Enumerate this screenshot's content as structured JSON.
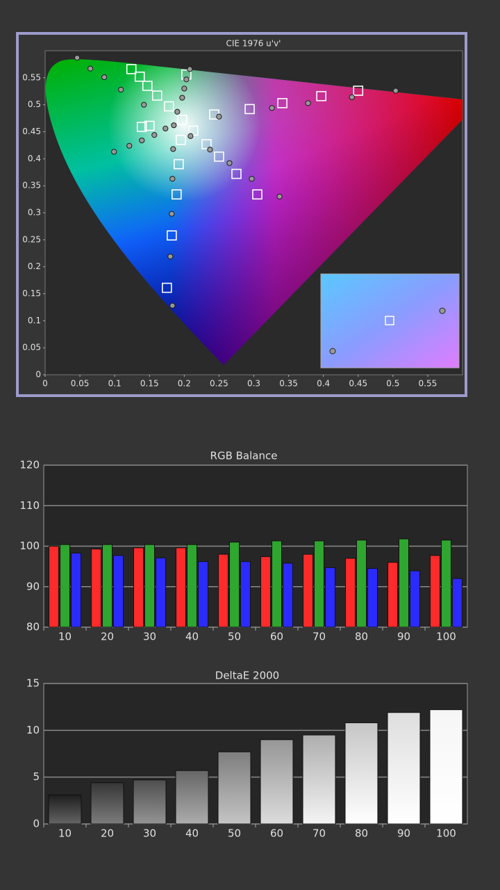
{
  "chart_data": [
    {
      "type": "scatter",
      "title": "CIE 1976 u'v'",
      "xlim": [
        0,
        0.6
      ],
      "ylim": [
        0,
        0.6
      ],
      "xticks": [
        0,
        0.05,
        0.1,
        0.15,
        0.2,
        0.25,
        0.3,
        0.35,
        0.4,
        0.45,
        0.5,
        0.55
      ],
      "yticks": [
        0,
        0.05,
        0.1,
        0.15,
        0.2,
        0.25,
        0.3,
        0.35,
        0.4,
        0.45,
        0.5,
        0.55
      ],
      "grid": false,
      "series": [
        {
          "marker": "square",
          "color": "#ffffff",
          "x": [
            0.124,
            0.136,
            0.147,
            0.161,
            0.178,
            0.203,
            0.197,
            0.139,
            0.15,
            0.213,
            0.243,
            0.294,
            0.341,
            0.397,
            0.45,
            0.195,
            0.232,
            0.25,
            0.275,
            0.305,
            0.192,
            0.189,
            0.182,
            0.175
          ],
          "values": [
            0.566,
            0.552,
            0.535,
            0.517,
            0.497,
            0.556,
            0.472,
            0.459,
            0.461,
            0.452,
            0.482,
            0.492,
            0.503,
            0.516,
            0.526,
            0.435,
            0.427,
            0.404,
            0.372,
            0.334,
            0.39,
            0.334,
            0.258,
            0.161
          ]
        },
        {
          "marker": "circle",
          "color": "#9a9a9a",
          "x": [
            0.046,
            0.065,
            0.085,
            0.109,
            0.142,
            0.099,
            0.121,
            0.139,
            0.157,
            0.173,
            0.185,
            0.19,
            0.197,
            0.2,
            0.203,
            0.208,
            0.209,
            0.237,
            0.265,
            0.297,
            0.337,
            0.184,
            0.183,
            0.182,
            0.18,
            0.183,
            0.25,
            0.326,
            0.378,
            0.441,
            0.504
          ],
          "values": [
            0.587,
            0.567,
            0.551,
            0.528,
            0.5,
            0.413,
            0.424,
            0.434,
            0.444,
            0.456,
            0.462,
            0.487,
            0.513,
            0.53,
            0.547,
            0.566,
            0.442,
            0.417,
            0.392,
            0.363,
            0.33,
            0.418,
            0.363,
            0.298,
            0.219,
            0.128,
            0.478,
            0.494,
            0.503,
            0.514,
            0.526
          ]
        }
      ]
    },
    {
      "type": "bar",
      "title": "RGB Balance",
      "categories": [
        "10",
        "20",
        "30",
        "40",
        "50",
        "60",
        "70",
        "80",
        "90",
        "100"
      ],
      "ylim": [
        80,
        120
      ],
      "yticks": [
        80,
        90,
        100,
        110,
        120
      ],
      "grid": true,
      "series": [
        {
          "color": "#ff2a2a",
          "values": [
            100,
            99.3,
            99.6,
            99.6,
            98,
            97.4,
            98,
            97,
            96,
            97.7
          ]
        },
        {
          "color": "#2fa62f",
          "values": [
            100.4,
            100.4,
            100.4,
            100.4,
            101,
            101.3,
            101.3,
            101.5,
            101.8,
            101.5
          ]
        },
        {
          "color": "#2b2bff",
          "values": [
            98.3,
            97.7,
            97.1,
            96.2,
            96.2,
            95.8,
            94.7,
            94.5,
            93.9,
            92
          ]
        }
      ]
    },
    {
      "type": "bar",
      "title": "DeltaE 2000",
      "categories": [
        "10",
        "20",
        "30",
        "40",
        "50",
        "60",
        "70",
        "80",
        "90",
        "100"
      ],
      "ylim": [
        0,
        15
      ],
      "yticks": [
        0,
        5,
        10,
        15
      ],
      "grid": true,
      "series": [
        {
          "color": "gradient",
          "values": [
            3.1,
            4.4,
            4.7,
            5.7,
            7.7,
            9,
            9.5,
            10.8,
            11.9,
            12.2
          ]
        }
      ]
    }
  ]
}
